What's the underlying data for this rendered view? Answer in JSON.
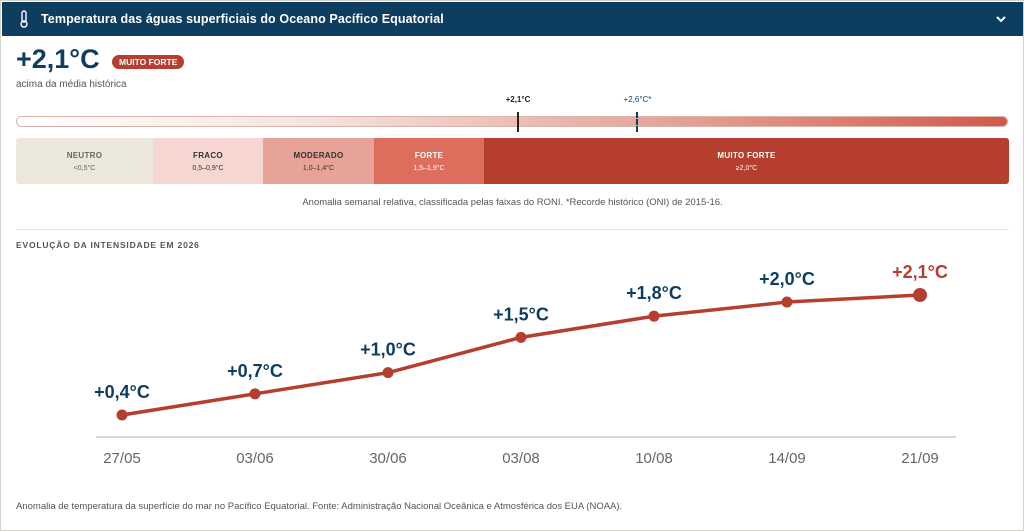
{
  "header": {
    "title": "Temperatura das águas superficiais do Oceano Pacífico Equatorial",
    "icon_left": "thermometer-icon",
    "icon_right": "chevron-down-icon"
  },
  "current": {
    "value": "+2,1°C",
    "badge": "MUITO FORTE",
    "subtitle": "acima da média histórica"
  },
  "scale": {
    "current_label": "+2,1°C",
    "current_value": 2.1,
    "record_label": "+2,6°C*",
    "record_value": 2.6,
    "bands": [
      {
        "name": "NEUTRO",
        "range": "<0,5°C",
        "bg": "#ece7db",
        "fg": "#666666"
      },
      {
        "name": "FRACO",
        "range": "0,5–0,9°C",
        "bg": "#f5d6d1",
        "fg": "#333333"
      },
      {
        "name": "MODERADO",
        "range": "1,0–1,4°C",
        "bg": "#e7a397",
        "fg": "#333333"
      },
      {
        "name": "FORTE",
        "range": "1,5–1,9°C",
        "bg": "#dd6d5c",
        "fg": "#ffffff"
      },
      {
        "name": "MUITO FORTE",
        "range": "≥2,0°C",
        "bg": "#b53e2e",
        "fg": "#ffffff"
      }
    ],
    "caption": "Anomalia semanal relativa, classificada pelas faixas do RONI. *Recorde histórico (ONI) de 2015-16."
  },
  "section_title": "EVOLUÇÃO DA INTENSIDADE EM 2026",
  "chart_data": {
    "type": "line",
    "title": "EVOLUÇÃO DA INTENSIDADE EM 2026",
    "categories": [
      "27/05",
      "03/06",
      "30/06",
      "03/08",
      "10/08",
      "14/09",
      "21/09"
    ],
    "values": [
      0.4,
      0.7,
      1.0,
      1.5,
      1.8,
      2.0,
      2.1
    ],
    "data_labels": [
      "+0,4°C",
      "+0,7°C",
      "+1,0°C",
      "+1,5°C",
      "+1,8°C",
      "+2,0°C",
      "+2,1°C"
    ],
    "xlabel": "",
    "ylabel": "",
    "ylim": [
      0.4,
      2.1
    ],
    "grid": false,
    "line_color": "#b53e2e",
    "label_color": "#0d3d5f",
    "highlight_color": "#b53e2e"
  },
  "footer": "Anomalia de temperatura da superfície do mar no Pacífico Equatorial. Fonte: Administração Nacional Oceânica e Atmosférica dos EUA (NOAA)."
}
